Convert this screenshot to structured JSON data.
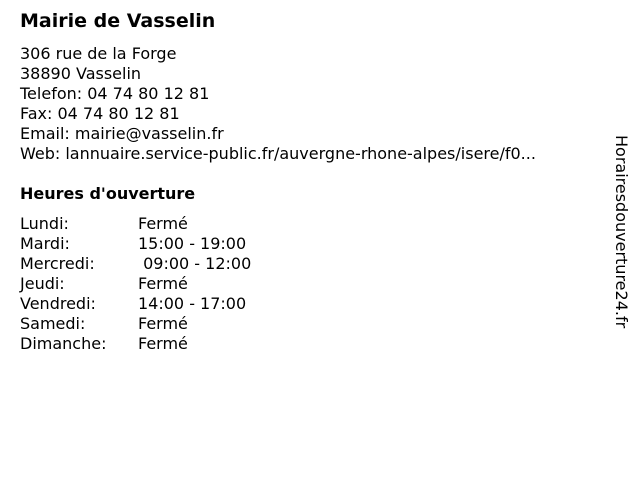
{
  "title": "Mairie de Vasselin",
  "address": [
    "306 rue de la Forge",
    "38890 Vasselin",
    "Telefon: 04 74 80 12 81",
    "Fax: 04 74 80 12 81",
    "Email: mairie@vasselin.fr",
    "Web: lannuaire.service-public.fr/auvergne-rhone-alpes/isere/f0..."
  ],
  "hours_title": "Heures d'ouverture",
  "hours": [
    {
      "day": "Lundi:",
      "time": "Fermé"
    },
    {
      "day": "Mardi:",
      "time": "15:00 - 19:00"
    },
    {
      "day": "Mercredi:",
      "time": " 09:00 - 12:00"
    },
    {
      "day": "Jeudi:",
      "time": "Fermé"
    },
    {
      "day": "Vendredi:",
      "time": "14:00 - 17:00"
    },
    {
      "day": "Samedi:",
      "time": "Fermé"
    },
    {
      "day": "Dimanche:",
      "time": "Fermé"
    }
  ],
  "watermark": "Horairesdouverture24.fr"
}
